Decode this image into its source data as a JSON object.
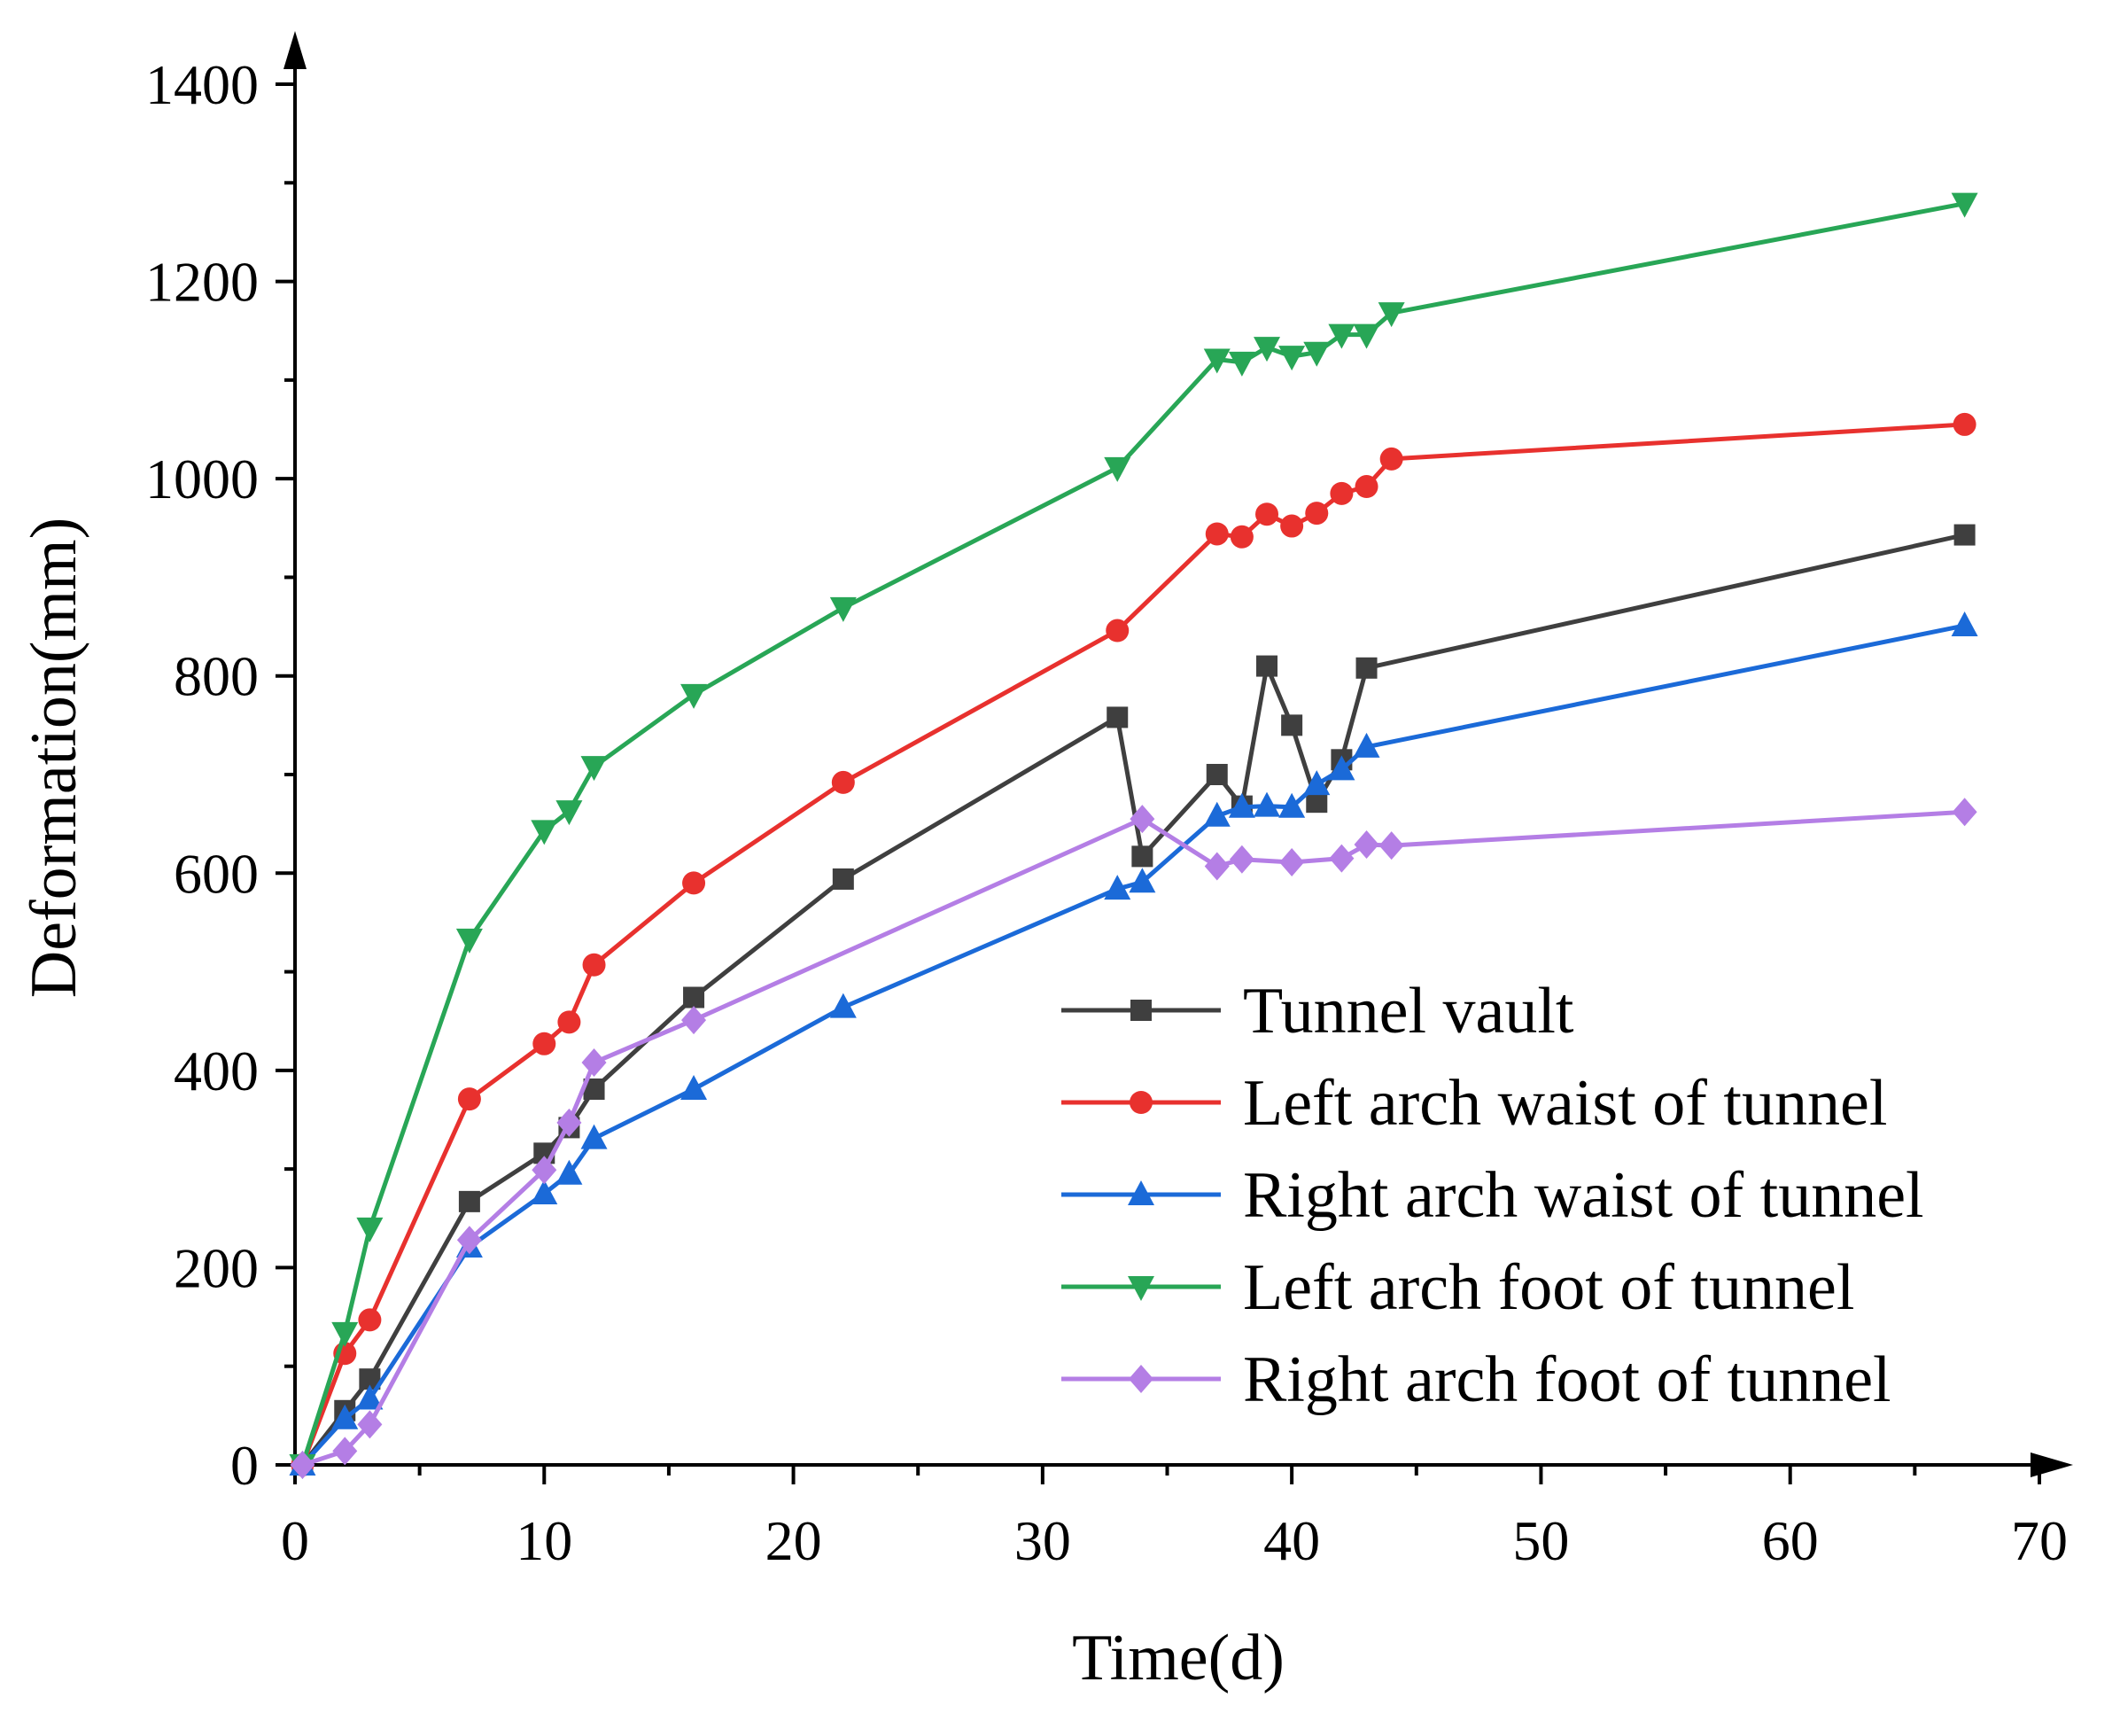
{
  "chart_data": {
    "type": "line",
    "title": "",
    "xlabel": "Time(d)",
    "ylabel": "Deformation(mm)",
    "xlim": [
      0,
      70
    ],
    "ylim": [
      0,
      1400
    ],
    "xticks": [
      0,
      10,
      20,
      30,
      40,
      50,
      60,
      70
    ],
    "yticks": [
      0,
      200,
      400,
      600,
      800,
      1000,
      1200,
      1400
    ],
    "grid": false,
    "legend_position": "bottom-right",
    "series": [
      {
        "name": "Tunnel vault",
        "color": "#3f3f3f",
        "marker": "square",
        "x": [
          0.3,
          2,
          3,
          7,
          10,
          11,
          12,
          16,
          22,
          33,
          34,
          37,
          38,
          39,
          40,
          41,
          42,
          43,
          67
        ],
        "y": [
          0,
          55,
          87,
          267,
          316,
          342,
          381,
          474,
          594,
          758,
          617,
          700,
          668,
          810,
          750,
          672,
          715,
          808,
          943
        ]
      },
      {
        "name": "Left arch waist of tunnel",
        "color": "#e8312e",
        "marker": "circle",
        "x": [
          0.3,
          2,
          3,
          7,
          10,
          11,
          12,
          16,
          22,
          33,
          37,
          38,
          39,
          40,
          41,
          42,
          43,
          44,
          67
        ],
        "y": [
          0,
          113,
          147,
          371,
          427,
          449,
          507,
          590,
          692,
          846,
          944,
          941,
          964,
          952,
          965,
          985,
          992,
          1020,
          1055
        ]
      },
      {
        "name": "Right arch waist of tunnel",
        "color": "#1b6ad8",
        "marker": "triangle-up",
        "x": [
          0.3,
          2,
          3,
          7,
          10,
          11,
          12,
          16,
          22,
          33,
          34,
          37,
          38,
          39,
          40,
          41,
          42,
          43,
          67
        ],
        "y": [
          0,
          47,
          67,
          221,
          275,
          295,
          331,
          381,
          464,
          584,
          591,
          658,
          667,
          668,
          667,
          690,
          705,
          728,
          851
        ]
      },
      {
        "name": "Left arch foot of tunnel",
        "color": "#28a656",
        "marker": "triangle-down",
        "x": [
          0.3,
          2,
          3,
          7,
          10,
          11,
          12,
          16,
          22,
          33,
          37,
          38,
          39,
          40,
          41,
          42,
          43,
          44,
          67
        ],
        "y": [
          0,
          134,
          240,
          533,
          643,
          663,
          708,
          781,
          869,
          1011,
          1121,
          1118,
          1133,
          1124,
          1128,
          1146,
          1146,
          1168,
          1279
        ]
      },
      {
        "name": "Right arch foot of tunnel",
        "color": "#b47ee5",
        "marker": "diamond",
        "x": [
          0.3,
          2,
          3,
          7,
          10,
          11,
          12,
          16,
          34,
          37,
          38,
          40,
          42,
          43,
          44,
          67
        ],
        "y": [
          0,
          14,
          41,
          228,
          299,
          347,
          408,
          451,
          655,
          607,
          614,
          611,
          615,
          629,
          628,
          662
        ]
      }
    ]
  }
}
